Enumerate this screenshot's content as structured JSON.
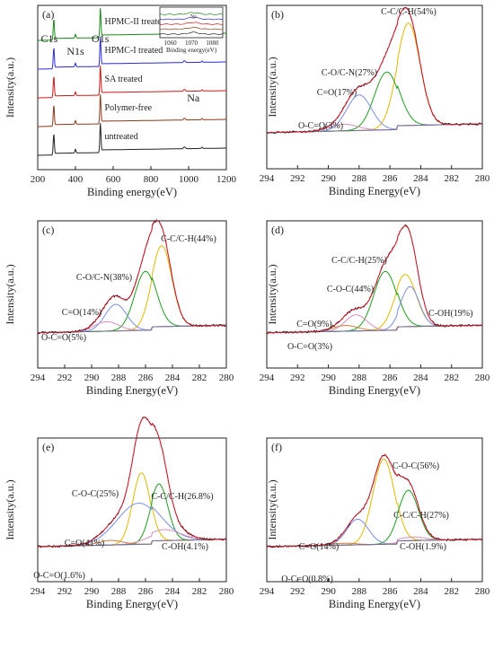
{
  "colors": {
    "envelope": "#e8192c",
    "background": "#6e6e9a",
    "components": [
      "#e3b800",
      "#1e9e1e",
      "#7a8ee8",
      "#d48fbe",
      "#d27f3a",
      "#8c66b3"
    ],
    "survey": [
      "#1a8a1a",
      "#2a2ad6",
      "#d01818",
      "#8a3a1a",
      "#222222"
    ]
  },
  "chart_data": [
    {
      "type": "line",
      "panel_label": "(a)",
      "xlabel": "Binding energy(eV)",
      "ylabel": "Intensity(a.u.)",
      "xlim": [
        200,
        1200
      ],
      "xticks": [
        200,
        400,
        600,
        800,
        1000,
        1200
      ],
      "peak_labels": [
        {
          "text": "C1s",
          "x": 285
        },
        {
          "text": "N1s",
          "x": 400
        },
        {
          "text": "O1s",
          "x": 532
        },
        {
          "text": "Na",
          "x": 1071
        }
      ],
      "series": [
        {
          "name": "HPMC-II treated",
          "offset": 4
        },
        {
          "name": "HPMC-I treated",
          "offset": 3
        },
        {
          "name": "SA treated",
          "offset": 2
        },
        {
          "name": "Polymer-free",
          "offset": 1
        },
        {
          "name": "untreated",
          "offset": 0
        }
      ],
      "inset": {
        "xlabel": "Binding energy(eV)",
        "xticks": [
          1060,
          1070,
          1080
        ],
        "xlim": [
          1055,
          1085
        ],
        "label": "Na"
      }
    },
    {
      "type": "line",
      "panel_label": "(b)",
      "xlabel": "Binding Energy(eV)",
      "ylabel": "Intensity(a.u.)",
      "xlim": [
        294,
        280
      ],
      "xticks": [
        294,
        292,
        290,
        288,
        286,
        284,
        282,
        280
      ],
      "components": [
        {
          "label": "C-C/C-H(54%)",
          "center": 284.8,
          "amp": 0.92,
          "width": 0.75
        },
        {
          "label": "C-O/C-N(27%)",
          "center": 286.2,
          "amp": 0.52,
          "width": 0.8
        },
        {
          "label": "C=O(17%)",
          "center": 288.0,
          "amp": 0.32,
          "width": 0.8
        },
        {
          "label": "O-C=O(3%)",
          "center": 289.0,
          "amp": 0.06,
          "width": 0.9
        }
      ]
    },
    {
      "type": "line",
      "panel_label": "(c)",
      "xlabel": "Binding Energy(eV)",
      "ylabel": "Intensity(a.u.)",
      "xlim": [
        294,
        280
      ],
      "xticks": [
        294,
        292,
        290,
        288,
        286,
        284,
        282,
        280
      ],
      "components": [
        {
          "label": "C-C/C-H(44%)",
          "center": 284.8,
          "amp": 0.85,
          "width": 0.75
        },
        {
          "label": "C-O/C-N(38%)",
          "center": 286.0,
          "amp": 0.62,
          "width": 0.8
        },
        {
          "label": "C=O(14%)",
          "center": 288.2,
          "amp": 0.28,
          "width": 0.8
        },
        {
          "label": "O-C=O(5%)",
          "center": 288.9,
          "amp": 0.1,
          "width": 0.9
        }
      ]
    },
    {
      "type": "line",
      "panel_label": "(d)",
      "xlabel": "Binding Energy(eV)",
      "ylabel": "Intensity(a.u.)",
      "xlim": [
        294,
        280
      ],
      "xticks": [
        294,
        292,
        290,
        288,
        286,
        284,
        282,
        280
      ],
      "components": [
        {
          "label": "C-C/C-H(25%)",
          "center": 285.0,
          "amp": 0.55,
          "width": 0.7
        },
        {
          "label": "C-O-C(44%)",
          "center": 286.3,
          "amp": 0.62,
          "width": 0.75
        },
        {
          "label": "C-OH(19%)",
          "center": 284.7,
          "amp": 0.42,
          "width": 0.6
        },
        {
          "label": "C=O(9%)",
          "center": 288.2,
          "amp": 0.17,
          "width": 0.7
        },
        {
          "label": "O-C=O(3%)",
          "center": 288.9,
          "amp": 0.06,
          "width": 0.8
        }
      ]
    },
    {
      "type": "line",
      "panel_label": "(e)",
      "xlabel": "Binding Energy(eV)",
      "ylabel": "Intensity(a.u.)",
      "xlim": [
        294,
        280
      ],
      "xticks": [
        294,
        292,
        290,
        288,
        286,
        284,
        282,
        280
      ],
      "components": [
        {
          "label": "C-O-C(25%)",
          "center": 286.3,
          "amp": 0.78,
          "width": 0.65
        },
        {
          "label": "C-C/C-H(26.8%)",
          "center": 285.0,
          "amp": 0.62,
          "width": 0.65
        },
        {
          "label": "C=O(41%)",
          "center": 286.5,
          "amp": 0.45,
          "width": 1.6
        },
        {
          "label": "C-OH(4.1%)",
          "center": 284.6,
          "amp": 0.12,
          "width": 1.2
        },
        {
          "label": "O-C=O(1.6%)",
          "center": 288.6,
          "amp": 0.05,
          "width": 0.9
        }
      ]
    },
    {
      "type": "line",
      "panel_label": "(f)",
      "xlabel": "Binding Energy(eV)",
      "ylabel": "Intensity(a.u.)",
      "xlim": [
        294,
        280
      ],
      "xticks": [
        294,
        292,
        290,
        288,
        286,
        284,
        282,
        280
      ],
      "components": [
        {
          "label": "C-O-C(56%)",
          "center": 286.4,
          "amp": 0.93,
          "width": 0.7
        },
        {
          "label": "C-C/C-H(27%)",
          "center": 284.8,
          "amp": 0.55,
          "width": 0.65
        },
        {
          "label": "C=O(14%)",
          "center": 288.1,
          "amp": 0.28,
          "width": 0.7
        },
        {
          "label": "C-OH(1.9%)",
          "center": 284.5,
          "amp": 0.04,
          "width": 0.8
        },
        {
          "label": "O-C=O(0.8%)",
          "center": 289.0,
          "amp": 0.02,
          "width": 0.8
        }
      ]
    }
  ]
}
